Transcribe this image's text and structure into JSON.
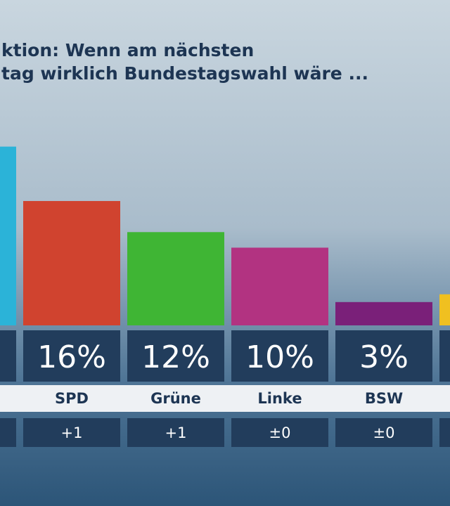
{
  "chart_data": {
    "type": "bar",
    "title_lines": [
      "ktion: Wenn am nächsten",
      "tag wirklich Bundestagswahl wäre ..."
    ],
    "categories": [
      null,
      "SPD",
      "Grüne",
      "Linke",
      "BSW",
      null
    ],
    "values": [
      23,
      16,
      12,
      10,
      3,
      4
    ],
    "value_labels": [
      null,
      "16%",
      "12%",
      "10%",
      "3%",
      null
    ],
    "changes": [
      null,
      "+1",
      "+1",
      "±0",
      "±0",
      null
    ],
    "colors": [
      "#2bb3d8",
      "#d0432f",
      "#3fb534",
      "#b23381",
      "#7a2079",
      "#f0c020"
    ],
    "ylim": [
      0,
      25
    ]
  }
}
